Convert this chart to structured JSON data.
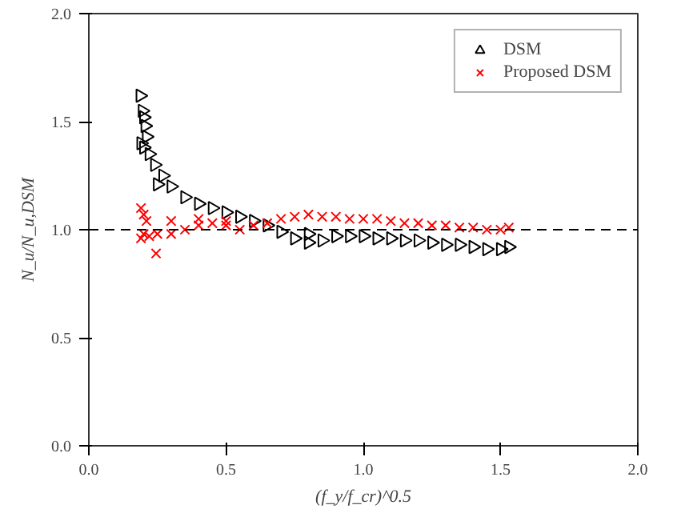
{
  "chart_data": {
    "type": "scatter",
    "xlabel": "(f_y/f_cr)^0.5",
    "ylabel": "N_u/N_u,DSM",
    "xlim": [
      0,
      2
    ],
    "ylim": [
      0,
      2
    ],
    "xticks": [
      {
        "value": 0,
        "label": "0.0"
      },
      {
        "value": 0.5,
        "label": "0.5"
      },
      {
        "value": 1,
        "label": "1.0"
      },
      {
        "value": 1.5,
        "label": "1.5"
      },
      {
        "value": 2,
        "label": "2.0"
      }
    ],
    "yticks": [
      {
        "value": 0,
        "label": "0.0"
      },
      {
        "value": 0.5,
        "label": "0.5"
      },
      {
        "value": 1,
        "label": "1.0"
      },
      {
        "value": 1.5,
        "label": "1.5"
      },
      {
        "value": 2,
        "label": "2.0"
      }
    ],
    "grid": false,
    "legend": "top right",
    "ref_lines": [
      {
        "axis": "y",
        "value": 1,
        "line_style": "dashed",
        "color": "#000000"
      }
    ],
    "series": [
      {
        "name": "DSM",
        "color": "#000000",
        "marker": "triangle",
        "x": [
          0.187,
          0.195,
          0.2,
          0.205,
          0.21,
          0.19,
          0.2,
          0.22,
          0.24,
          0.25,
          0.27,
          0.3,
          0.35,
          0.4,
          0.45,
          0.5,
          0.55,
          0.6,
          0.65,
          0.7,
          0.75,
          0.8,
          0.8,
          0.85,
          0.9,
          0.95,
          1.0,
          1.05,
          1.1,
          1.15,
          1.2,
          1.25,
          1.3,
          1.35,
          1.4,
          1.45,
          1.5,
          1.53
        ],
        "values": [
          1.62,
          1.55,
          1.52,
          1.48,
          1.43,
          1.4,
          1.38,
          1.35,
          1.3,
          1.21,
          1.25,
          1.2,
          1.15,
          1.12,
          1.1,
          1.08,
          1.06,
          1.04,
          1.02,
          0.99,
          0.96,
          0.94,
          0.98,
          0.95,
          0.97,
          0.97,
          0.97,
          0.96,
          0.96,
          0.95,
          0.95,
          0.94,
          0.93,
          0.93,
          0.92,
          0.91,
          0.91,
          0.92
        ]
      },
      {
        "name": "Proposed DSM",
        "color": "#ff0000",
        "marker": "cross",
        "x": [
          0.19,
          0.2,
          0.21,
          0.19,
          0.2,
          0.22,
          0.245,
          0.25,
          0.3,
          0.35,
          0.4,
          0.45,
          0.5,
          0.55,
          0.3,
          0.4,
          0.5,
          0.6,
          0.65,
          0.7,
          0.75,
          0.8,
          0.85,
          0.9,
          0.95,
          1.0,
          1.05,
          1.1,
          1.15,
          1.2,
          1.25,
          1.3,
          1.35,
          1.4,
          1.45,
          1.5,
          1.53
        ],
        "values": [
          1.1,
          1.07,
          1.04,
          0.96,
          0.98,
          0.97,
          0.89,
          0.98,
          0.98,
          1.0,
          1.02,
          1.03,
          1.02,
          1.0,
          1.04,
          1.05,
          1.04,
          1.02,
          1.03,
          1.05,
          1.06,
          1.07,
          1.06,
          1.06,
          1.05,
          1.05,
          1.05,
          1.04,
          1.03,
          1.03,
          1.02,
          1.02,
          1.01,
          1.01,
          1.0,
          1.0,
          1.01
        ]
      }
    ]
  }
}
